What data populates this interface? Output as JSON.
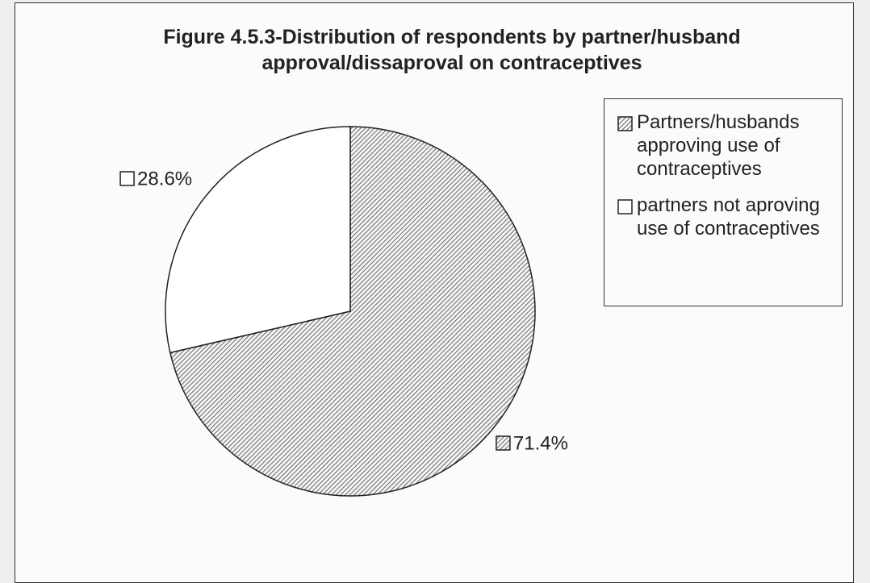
{
  "chart_data": {
    "type": "pie",
    "title": "Figure 4.5.3-Distribution of respondents by partner/husband approval/dissaproval on contraceptives",
    "categories": [
      "Partners/husbands approving use of contraceptives",
      "partners not aproving use of contraceptives"
    ],
    "values": [
      71.4,
      28.6
    ],
    "value_labels": [
      "71.4%",
      "28.6%"
    ],
    "colors": [
      "#444444",
      "#ffffff"
    ],
    "hatch": [
      true,
      false
    ],
    "legend": "right"
  }
}
